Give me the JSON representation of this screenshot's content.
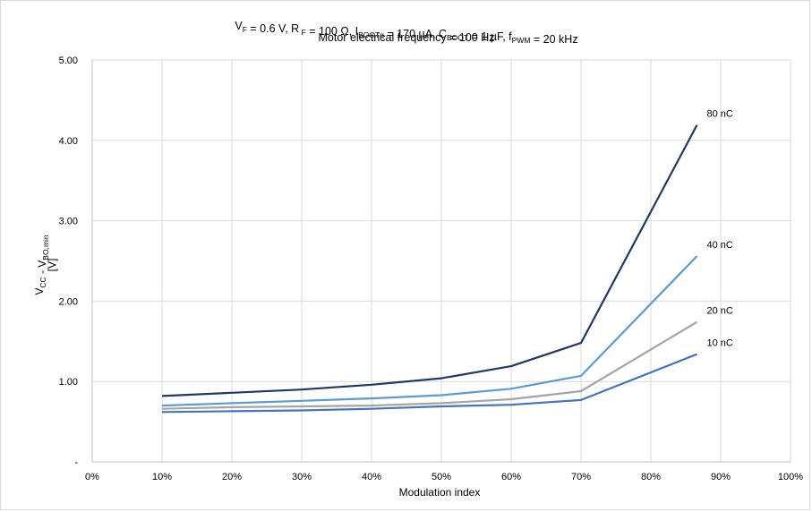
{
  "chart_data": {
    "type": "line",
    "title_line1": {
      "parts": [
        {
          "t": "V",
          "sub": false
        },
        {
          "t": "F",
          "sub": true
        },
        {
          "t": " = 0.6 V, R",
          "sub": false
        },
        {
          "t": " F",
          "sub": true
        },
        {
          "t": " = 100 Ω, I",
          "sub": false
        },
        {
          "t": "BOOTq",
          "sub": true
        },
        {
          "t": " = 170 µA, C",
          "sub": false
        },
        {
          "t": "BOOT",
          "sub": true
        },
        {
          "t": " = 1 µF,  f",
          "sub": false
        },
        {
          "t": "PWM",
          "sub": true
        },
        {
          "t": " = 20 kHz",
          "sub": false
        }
      ]
    },
    "title_line2": "Motor electrical frequency = 100 Hz",
    "xlabel": "Modulation index",
    "ylabel_line1": {
      "parts": [
        {
          "t": "V",
          "sub": false
        },
        {
          "t": "CC",
          "sub": true
        },
        {
          "t": " - V",
          "sub": false
        },
        {
          "t": "BO,min",
          "sub": true
        }
      ]
    },
    "ylabel_line2": "[V]",
    "xlim": [
      0,
      100
    ],
    "ylim": [
      0,
      5
    ],
    "x_ticks": [
      0,
      10,
      20,
      30,
      40,
      50,
      60,
      70,
      80,
      90,
      100
    ],
    "x_tick_labels": [
      "0%",
      "10%",
      "20%",
      "30%",
      "40%",
      "50%",
      "60%",
      "70%",
      "80%",
      "90%",
      "100%"
    ],
    "y_ticks": [
      0,
      1,
      2,
      3,
      4,
      5
    ],
    "y_tick_labels": [
      "-",
      "1.00",
      "2.00",
      "3.00",
      "4.00",
      "5.00"
    ],
    "grid": true,
    "x": [
      10,
      20,
      30,
      40,
      50,
      60,
      70,
      86.6
    ],
    "series": [
      {
        "name": "80 nC",
        "color": "#203864",
        "values": [
          0.82,
          0.86,
          0.9,
          0.96,
          1.04,
          1.19,
          1.48,
          4.19
        ]
      },
      {
        "name": "40 nC",
        "color": "#5b9bd5",
        "values": [
          0.7,
          0.73,
          0.76,
          0.79,
          0.83,
          0.91,
          1.07,
          2.56
        ]
      },
      {
        "name": "20 nC",
        "color": "#a5a5a5",
        "values": [
          0.66,
          0.68,
          0.69,
          0.7,
          0.73,
          0.78,
          0.88,
          1.74
        ]
      },
      {
        "name": "10 nC",
        "color": "#4472c4",
        "values": [
          0.62,
          0.63,
          0.64,
          0.66,
          0.69,
          0.71,
          0.77,
          1.34
        ]
      }
    ]
  }
}
